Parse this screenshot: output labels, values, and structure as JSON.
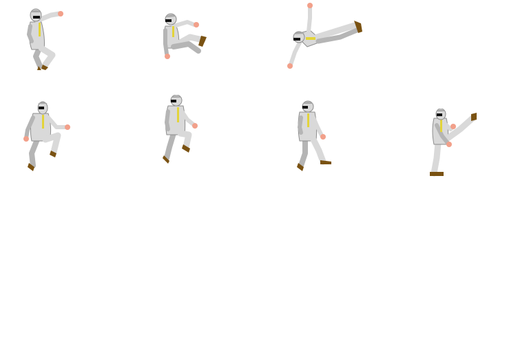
{
  "sprite_sheet": {
    "background": "#ffffff",
    "palette": {
      "suit": "#d9d9d9",
      "suit_shade": "#b5b5b5",
      "outline": "#8c8c8c",
      "skin": "#f2a08a",
      "tie": "#e3d43a",
      "shoe": "#7a5212",
      "glasses": "#111111",
      "hair": "#a8a8a8"
    },
    "rows": [
      {
        "row": "jump-attacks",
        "frames": [
          {
            "pose": "jump-punch"
          },
          {
            "pose": "jump-crouch"
          },
          {
            "pose": "flying-kick"
          }
        ]
      },
      {
        "row": "walk-and-kick",
        "frames": [
          {
            "pose": "knee-raise"
          },
          {
            "pose": "step-high"
          },
          {
            "pose": "walk-stride"
          },
          {
            "pose": "high-kick"
          }
        ]
      }
    ]
  }
}
